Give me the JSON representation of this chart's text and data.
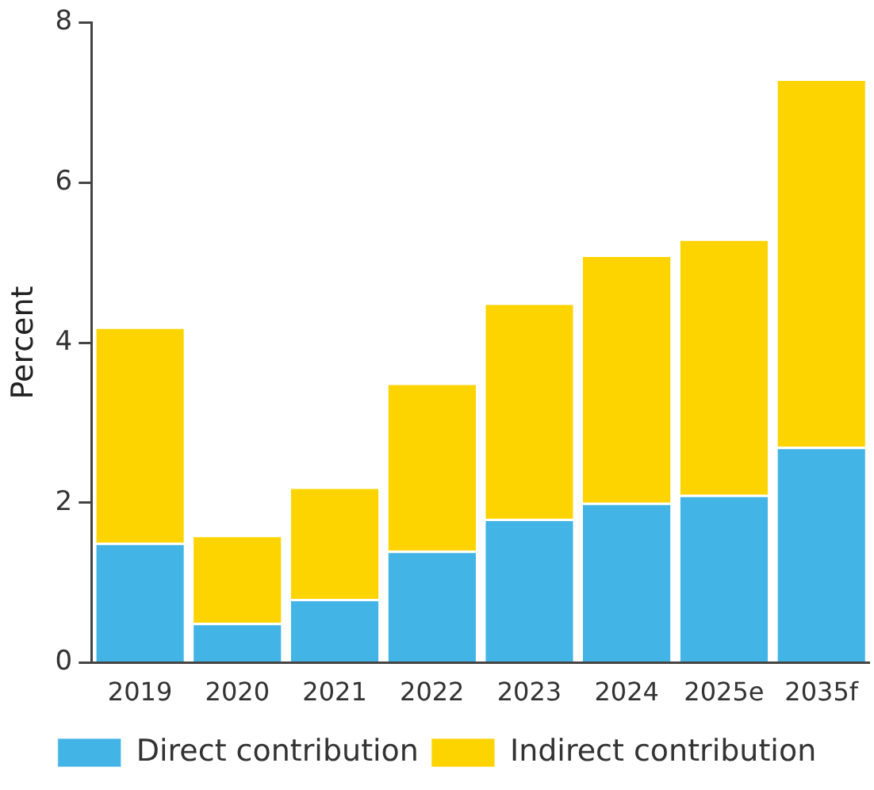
{
  "chart_data": {
    "type": "bar",
    "stacked": true,
    "ylabel": "Percent",
    "categories": [
      "2019",
      "2020",
      "2021",
      "2022",
      "2023",
      "2024",
      "2025e",
      "2035f"
    ],
    "series": [
      {
        "name": "Direct contribution",
        "color": "#42b4e6",
        "values": [
          1.5,
          0.5,
          0.8,
          1.4,
          1.8,
          2.0,
          2.1,
          2.7
        ]
      },
      {
        "name": "Indirect contribution",
        "color": "#fdd400",
        "values": [
          2.7,
          1.1,
          1.4,
          2.1,
          2.7,
          3.1,
          3.2,
          4.6
        ]
      }
    ],
    "ylim": [
      0,
      8
    ],
    "yticks": [
      0,
      2,
      4,
      6,
      8
    ],
    "legend": "bottom"
  }
}
